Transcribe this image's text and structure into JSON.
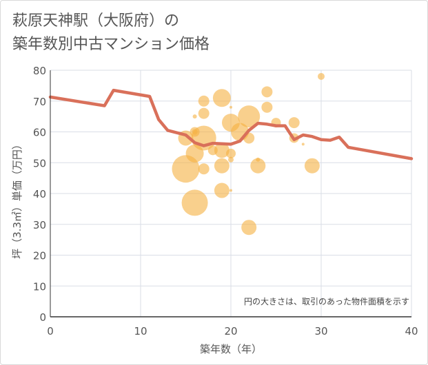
{
  "title": {
    "line1": "萩原天神駅（大阪府）の",
    "line2": "築年数別中古マンション価格"
  },
  "note": "円の大きさは、取引のあった物件面積を示す",
  "colors": {
    "bubble": "#f5b041",
    "line": "#d9705a",
    "grid": "#d9dde6",
    "axis": "#333333"
  },
  "chart_data": {
    "type": "scatter",
    "xlabel": "築年数（年）",
    "ylabel": "坪（3.3㎡）単価（万円）",
    "xlim": [
      0,
      40
    ],
    "ylim": [
      0,
      80
    ],
    "x_ticks": [
      0,
      10,
      20,
      30,
      40
    ],
    "y_ticks": [
      0,
      10,
      20,
      30,
      40,
      50,
      60,
      70,
      80
    ],
    "grid": true,
    "series": [
      {
        "kind": "bubble",
        "points": [
          {
            "x": 15,
            "y": 58,
            "r": 11
          },
          {
            "x": 15,
            "y": 48,
            "r": 20
          },
          {
            "x": 16,
            "y": 60,
            "r": 7
          },
          {
            "x": 16,
            "y": 60,
            "r": 4
          },
          {
            "x": 16,
            "y": 53,
            "r": 13
          },
          {
            "x": 16,
            "y": 37,
            "r": 19
          },
          {
            "x": 16,
            "y": 65,
            "r": 3
          },
          {
            "x": 17,
            "y": 70,
            "r": 8
          },
          {
            "x": 17,
            "y": 66,
            "r": 8
          },
          {
            "x": 17,
            "y": 58,
            "r": 18
          },
          {
            "x": 17,
            "y": 48,
            "r": 8
          },
          {
            "x": 18,
            "y": 54,
            "r": 7
          },
          {
            "x": 19,
            "y": 71,
            "r": 13
          },
          {
            "x": 19,
            "y": 54,
            "r": 11
          },
          {
            "x": 19,
            "y": 49,
            "r": 11
          },
          {
            "x": 19,
            "y": 41,
            "r": 11
          },
          {
            "x": 20,
            "y": 63,
            "r": 13
          },
          {
            "x": 20,
            "y": 53,
            "r": 7
          },
          {
            "x": 20,
            "y": 51,
            "r": 4
          },
          {
            "x": 20,
            "y": 41,
            "r": 2
          },
          {
            "x": 20,
            "y": 68,
            "r": 2
          },
          {
            "x": 21,
            "y": 60,
            "r": 13
          },
          {
            "x": 22,
            "y": 65,
            "r": 16
          },
          {
            "x": 22,
            "y": 58,
            "r": 8
          },
          {
            "x": 22,
            "y": 29,
            "r": 11
          },
          {
            "x": 23,
            "y": 49,
            "r": 11
          },
          {
            "x": 23,
            "y": 51,
            "r": 3
          },
          {
            "x": 24,
            "y": 73,
            "r": 8
          },
          {
            "x": 24,
            "y": 68,
            "r": 8
          },
          {
            "x": 25,
            "y": 63,
            "r": 7
          },
          {
            "x": 27,
            "y": 63,
            "r": 8
          },
          {
            "x": 27,
            "y": 58,
            "r": 7
          },
          {
            "x": 28,
            "y": 56,
            "r": 2
          },
          {
            "x": 29,
            "y": 49,
            "r": 11
          },
          {
            "x": 30,
            "y": 78,
            "r": 5
          }
        ]
      },
      {
        "kind": "line",
        "points": [
          {
            "x": 0,
            "y": 71.3
          },
          {
            "x": 6,
            "y": 68.5
          },
          {
            "x": 7,
            "y": 73.5
          },
          {
            "x": 11,
            "y": 71.5
          },
          {
            "x": 12,
            "y": 64
          },
          {
            "x": 13,
            "y": 60.5
          },
          {
            "x": 15,
            "y": 59
          },
          {
            "x": 16,
            "y": 56.5
          },
          {
            "x": 17,
            "y": 55.5
          },
          {
            "x": 18,
            "y": 56.3
          },
          {
            "x": 20,
            "y": 56
          },
          {
            "x": 21,
            "y": 57
          },
          {
            "x": 22,
            "y": 60.5
          },
          {
            "x": 23,
            "y": 62.8
          },
          {
            "x": 24,
            "y": 62.5
          },
          {
            "x": 25,
            "y": 62
          },
          {
            "x": 26,
            "y": 62
          },
          {
            "x": 27,
            "y": 57.5
          },
          {
            "x": 28,
            "y": 59
          },
          {
            "x": 29,
            "y": 58.5
          },
          {
            "x": 30,
            "y": 57.5
          },
          {
            "x": 31,
            "y": 57.3
          },
          {
            "x": 32,
            "y": 58.3
          },
          {
            "x": 33,
            "y": 55
          },
          {
            "x": 40,
            "y": 51.3
          }
        ]
      }
    ]
  }
}
